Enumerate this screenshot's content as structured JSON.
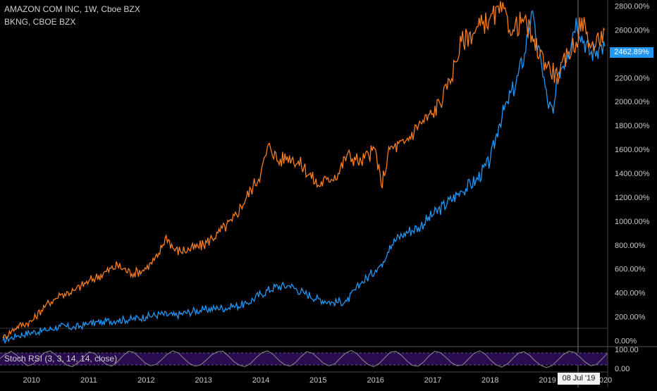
{
  "legend": {
    "amzn": "AMAZON COM INC, 1W, Cboe BZX",
    "bkng": "BKNG, CBOE BZX"
  },
  "indicator": {
    "label": "Stoch RSI (3, 3, 14, 14, close)"
  },
  "current_value_tag": "2462.89%",
  "crosshair_date_tag": "08 Jul '19",
  "colors": {
    "background": "#000000",
    "amzn": "#2196f3",
    "bkng": "#f57c20",
    "rsi_band": "#2a0d4e",
    "rsi_line": "#8a8a8a"
  },
  "chart_data": [
    {
      "type": "line",
      "title": "",
      "y_unit": "%",
      "x_ticks": [
        "2010",
        "2011",
        "2012",
        "2013",
        "2014",
        "2015",
        "2016",
        "2017",
        "2018",
        "2019",
        "2020"
      ],
      "y_ticks": [
        "0.00%",
        "200.00%",
        "400.00%",
        "600.00%",
        "800.00%",
        "1000.00%",
        "1200.00%",
        "1400.00%",
        "1600.00%",
        "1800.00%",
        "2000.00%",
        "2200.00%",
        "2400.00%",
        "2600.00%",
        "2800.00%"
      ],
      "ylim": [
        -50,
        2850
      ],
      "xlim": [
        2009.45,
        2020.05
      ],
      "grid": false,
      "series": [
        {
          "name": "AMAZON COM INC",
          "x": [
            2009.5,
            2009.75,
            2010.0,
            2010.25,
            2010.5,
            2010.75,
            2011.0,
            2011.25,
            2011.5,
            2011.75,
            2012.0,
            2012.25,
            2012.5,
            2012.75,
            2013.0,
            2013.25,
            2013.5,
            2013.75,
            2014.0,
            2014.25,
            2014.5,
            2014.75,
            2015.0,
            2015.25,
            2015.5,
            2015.75,
            2016.0,
            2016.1,
            2016.25,
            2016.5,
            2016.75,
            2017.0,
            2017.25,
            2017.5,
            2017.75,
            2018.0,
            2018.15,
            2018.3,
            2018.45,
            2018.6,
            2018.72,
            2018.8,
            2018.9,
            2019.0,
            2019.1,
            2019.2,
            2019.35,
            2019.5,
            2019.6,
            2019.75,
            2019.9,
            2020.0
          ],
          "values": [
            0,
            40,
            70,
            85,
            120,
            110,
            140,
            160,
            170,
            180,
            200,
            220,
            210,
            240,
            260,
            270,
            280,
            310,
            390,
            450,
            460,
            400,
            350,
            320,
            330,
            480,
            590,
            640,
            800,
            900,
            950,
            1050,
            1150,
            1250,
            1340,
            1500,
            1800,
            2000,
            2150,
            2400,
            2750,
            2500,
            2300,
            2000,
            1900,
            2250,
            2400,
            2700,
            2550,
            2400,
            2450,
            2463
          ]
        },
        {
          "name": "BKNG",
          "x": [
            2009.5,
            2009.75,
            2010.0,
            2010.25,
            2010.5,
            2010.75,
            2011.0,
            2011.25,
            2011.5,
            2011.75,
            2012.0,
            2012.2,
            2012.35,
            2012.5,
            2012.75,
            2013.0,
            2013.25,
            2013.5,
            2013.75,
            2014.0,
            2014.15,
            2014.3,
            2014.5,
            2014.75,
            2015.0,
            2015.15,
            2015.35,
            2015.5,
            2015.75,
            2016.0,
            2016.1,
            2016.25,
            2016.5,
            2016.75,
            2017.0,
            2017.25,
            2017.5,
            2017.75,
            2018.0,
            2018.2,
            2018.4,
            2018.6,
            2018.75,
            2019.0,
            2019.2,
            2019.35,
            2019.5,
            2019.6,
            2019.75,
            2019.9,
            2020.0
          ],
          "values": [
            20,
            120,
            160,
            300,
            380,
            420,
            500,
            560,
            630,
            560,
            600,
            700,
            880,
            750,
            760,
            800,
            900,
            1000,
            1200,
            1400,
            1650,
            1500,
            1550,
            1450,
            1300,
            1350,
            1400,
            1550,
            1500,
            1600,
            1300,
            1600,
            1650,
            1800,
            1900,
            2100,
            2500,
            2600,
            2700,
            2750,
            2600,
            2700,
            2500,
            2300,
            2200,
            2400,
            2500,
            2700,
            2450,
            2500,
            2600
          ]
        }
      ]
    },
    {
      "type": "line",
      "title": "Stoch RSI (3, 3, 14, 14, close)",
      "y_ticks": [
        "100.00",
        "0.00"
      ],
      "ylim": [
        0,
        100
      ],
      "band": [
        20,
        80
      ],
      "series": [
        {
          "name": "Stoch RSI",
          "values": [
            55,
            75,
            88,
            70,
            42,
            22,
            30,
            58,
            82,
            90,
            72,
            45,
            25,
            18,
            35,
            62,
            85,
            78,
            52,
            30,
            20,
            38,
            66,
            88,
            84,
            60,
            35,
            22,
            28,
            50,
            75,
            90,
            80,
            55,
            32,
            20,
            26,
            48,
            72,
            86,
            88,
            66,
            40,
            24,
            18,
            34,
            60,
            82,
            90,
            74,
            48,
            28,
            20,
            36,
            64,
            86,
            80,
            58,
            34,
            22,
            30,
            56,
            80,
            92,
            78,
            50,
            28,
            18,
            32,
            58,
            84,
            88,
            70,
            44,
            24,
            20,
            40,
            68,
            88,
            82,
            60,
            36,
            22,
            26,
            52,
            78,
            90,
            76,
            48,
            26,
            16,
            30,
            56,
            80,
            86,
            70,
            44,
            24,
            14,
            22,
            46,
            72,
            88,
            84,
            62,
            38,
            22,
            28,
            54,
            80
          ]
        }
      ]
    }
  ]
}
